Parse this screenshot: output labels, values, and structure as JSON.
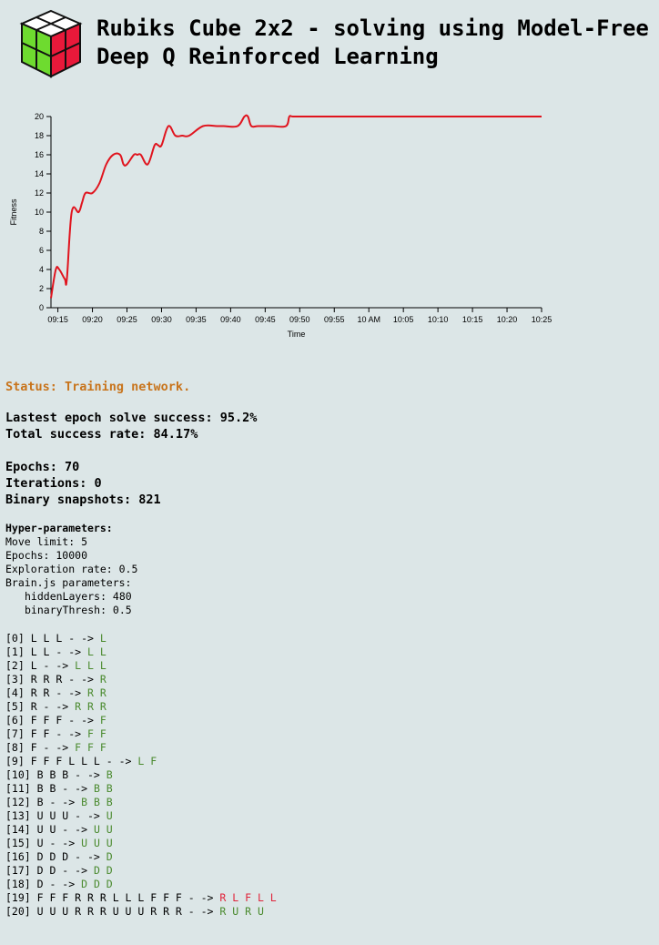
{
  "header": {
    "logo_icon": "rubiks-cube-icon",
    "title": "Rubiks Cube 2x2 - solving using Model-Free Deep Q Reinforced Learning"
  },
  "chart_data": {
    "type": "line",
    "ylabel": "Fitness",
    "xlabel": "Time",
    "ylim": [
      0,
      20
    ],
    "yticks": [
      "0",
      "2",
      "4",
      "6",
      "8",
      "10",
      "12",
      "14",
      "16",
      "18",
      "20"
    ],
    "xticks": [
      "09:15",
      "09:20",
      "09:25",
      "09:30",
      "09:35",
      "09:40",
      "09:45",
      "09:50",
      "09:55",
      "10 AM",
      "10:05",
      "10:10",
      "10:15",
      "10:20",
      "10:25"
    ],
    "line_color": "#e0141e",
    "series": [
      {
        "x_minutes_after_0914": [
          0,
          0.7,
          1.2,
          2,
          2.3,
          3,
          4,
          4.5,
          5,
          6,
          7,
          8,
          9,
          10,
          10.5,
          11,
          12,
          12.5,
          13,
          14,
          15,
          15.5,
          16,
          17,
          18,
          19,
          20,
          22,
          24,
          25,
          27,
          28,
          28.5,
          29,
          30,
          32,
          34,
          34.5,
          35,
          37,
          38,
          71
        ],
        "values": [
          1,
          4,
          4,
          3,
          3,
          10,
          10,
          11,
          12,
          12,
          13,
          15,
          16,
          16,
          15,
          15,
          16,
          16,
          16,
          15,
          17,
          17,
          17,
          19,
          18,
          18,
          18,
          19,
          19,
          19,
          19,
          20,
          20,
          19,
          19,
          19,
          19,
          20,
          20,
          20,
          20,
          20
        ]
      }
    ]
  },
  "status": "Status: Training network.",
  "stats": {
    "latest": "Lastest epoch solve success: 95.2%",
    "total": "Total success rate: 84.17%",
    "epochs": "Epochs: 70",
    "iterations": "Iterations: 0",
    "snapshots": "Binary snapshots: 821"
  },
  "hyper": {
    "title": "Hyper-parameters:",
    "move_limit": "Move limit: 5",
    "epochs": "Epochs: 10000",
    "exploration": "Exploration rate: 0.5",
    "brain": "Brain.js parameters:",
    "hidden": "hiddenLayers: 480",
    "thresh": "binaryThresh: 0.5"
  },
  "moves": [
    {
      "prefix": "[0] L L L - -> ",
      "result": "L",
      "ok": true
    },
    {
      "prefix": "[1] L L - -> ",
      "result": "L L",
      "ok": true
    },
    {
      "prefix": "[2] L - -> ",
      "result": "L L L",
      "ok": true
    },
    {
      "prefix": "[3] R R R - -> ",
      "result": "R",
      "ok": true
    },
    {
      "prefix": "[4] R R - -> ",
      "result": "R R",
      "ok": true
    },
    {
      "prefix": "[5] R - -> ",
      "result": "R R R",
      "ok": true
    },
    {
      "prefix": "[6] F F F - -> ",
      "result": "F",
      "ok": true
    },
    {
      "prefix": "[7] F F - -> ",
      "result": "F F",
      "ok": true
    },
    {
      "prefix": "[8] F - -> ",
      "result": "F F F",
      "ok": true
    },
    {
      "prefix": "[9] F F F L L L - -> ",
      "result": "L F",
      "ok": true
    },
    {
      "prefix": "[10] B B B - -> ",
      "result": "B",
      "ok": true
    },
    {
      "prefix": "[11] B B - -> ",
      "result": "B B",
      "ok": true
    },
    {
      "prefix": "[12] B - -> ",
      "result": "B B B",
      "ok": true
    },
    {
      "prefix": "[13] U U U - -> ",
      "result": "U",
      "ok": true
    },
    {
      "prefix": "[14] U U - -> ",
      "result": "U U",
      "ok": true
    },
    {
      "prefix": "[15] U - -> ",
      "result": "U U U",
      "ok": true
    },
    {
      "prefix": "[16] D D D - -> ",
      "result": "D",
      "ok": true
    },
    {
      "prefix": "[17] D D - -> ",
      "result": "D D",
      "ok": true
    },
    {
      "prefix": "[18] D - -> ",
      "result": "D D D",
      "ok": true
    },
    {
      "prefix": "[19] F F F R R R L L L F F F - -> ",
      "result": "R L F L L",
      "ok": false
    },
    {
      "prefix": "[20] U U U R R R U U U R R R - -> ",
      "result": "R U R U",
      "ok": true
    }
  ]
}
